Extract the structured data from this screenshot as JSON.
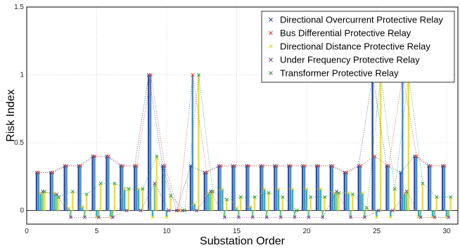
{
  "chart_data": {
    "type": "bar",
    "title": "",
    "xlabel": "Substation Order",
    "ylabel": "Risk Index",
    "xlim": [
      0,
      30.8
    ],
    "ylim": [
      -0.1,
      1.5
    ],
    "xticks": [
      0,
      5,
      10,
      15,
      20,
      25,
      30
    ],
    "yticks": [
      0,
      0.5,
      1,
      1.5
    ],
    "ytick_labels": [
      "0",
      "0.5",
      "1",
      "1.5"
    ],
    "grid": true,
    "legend_position": "top-right",
    "categories": [
      1,
      2,
      3,
      4,
      5,
      6,
      7,
      8,
      9,
      10,
      11,
      12,
      13,
      14,
      15,
      16,
      17,
      18,
      19,
      20,
      21,
      22,
      23,
      24,
      25,
      26,
      27,
      28,
      29,
      30
    ],
    "series": [
      {
        "name": "Directional Overcurrent Protective Relay",
        "color": "#2f4fa6",
        "marker": "×",
        "values": [
          0.28,
          0.28,
          0.33,
          0.33,
          0.4,
          0.4,
          0.33,
          0.33,
          1.0,
          0.33,
          0.0,
          0.33,
          0.28,
          0.33,
          0.33,
          0.33,
          0.33,
          0.33,
          0.33,
          0.33,
          0.33,
          0.33,
          0.28,
          0.33,
          1.0,
          0.33,
          0.28,
          0.4,
          0.33,
          0.33
        ]
      },
      {
        "name": "Bus Differential Protective Relay",
        "color": "#e0402a",
        "marker": "×",
        "values": [
          0.28,
          0.28,
          0.33,
          0.33,
          0.4,
          0.4,
          0.33,
          0.33,
          1.0,
          0.33,
          0.0,
          1.0,
          0.28,
          0.33,
          0.33,
          0.33,
          0.33,
          0.33,
          0.33,
          0.33,
          0.33,
          0.33,
          0.28,
          0.33,
          0.4,
          0.33,
          1.0,
          0.4,
          0.33,
          0.33
        ]
      },
      {
        "name": "Directional Distance Protective Relay",
        "color": "#e8d93a",
        "marker": "×",
        "values": [
          0.13,
          0.13,
          0.02,
          0.03,
          -0.05,
          -0.05,
          0.16,
          0.16,
          -0.05,
          -0.05,
          0.0,
          0.05,
          0.13,
          0.16,
          0.02,
          0.03,
          0.16,
          0.16,
          0.16,
          0.16,
          0.16,
          0.13,
          0.13,
          0.13,
          -0.05,
          -0.05,
          0.13,
          -0.05,
          -0.05,
          -0.05
        ]
      },
      {
        "name": "Under Frequency Protective Relay",
        "color": "#7f3f98",
        "marker": "×",
        "values": [
          0.14,
          0.12,
          -0.05,
          -0.05,
          -0.05,
          -0.05,
          0.0,
          0.0,
          0.2,
          0.0,
          0.0,
          0.0,
          0.14,
          -0.05,
          -0.05,
          -0.05,
          -0.05,
          -0.05,
          -0.05,
          -0.05,
          -0.05,
          0.14,
          -0.05,
          -0.05,
          0.0,
          0.0,
          0.14,
          -0.05,
          -0.05,
          -0.05
        ]
      },
      {
        "name": "Transformer Protective Relay",
        "color": "#3a9a4a",
        "marker": "×",
        "values": [
          0.14,
          0.1,
          0.14,
          0.12,
          0.2,
          0.2,
          0.16,
          0.16,
          0.4,
          0.11,
          0.0,
          1.0,
          0.14,
          0.08,
          0.1,
          0.1,
          0.13,
          0.1,
          0.0,
          0.1,
          0.1,
          0.13,
          0.12,
          0.02,
          1.0,
          0.16,
          1.0,
          0.2,
          0.1,
          0.1
        ]
      }
    ],
    "bar_colors": [
      "#2f4fa6",
      "#4a8fd0",
      "#2fb5b8",
      "#73c98f",
      "#e8e13a"
    ]
  }
}
